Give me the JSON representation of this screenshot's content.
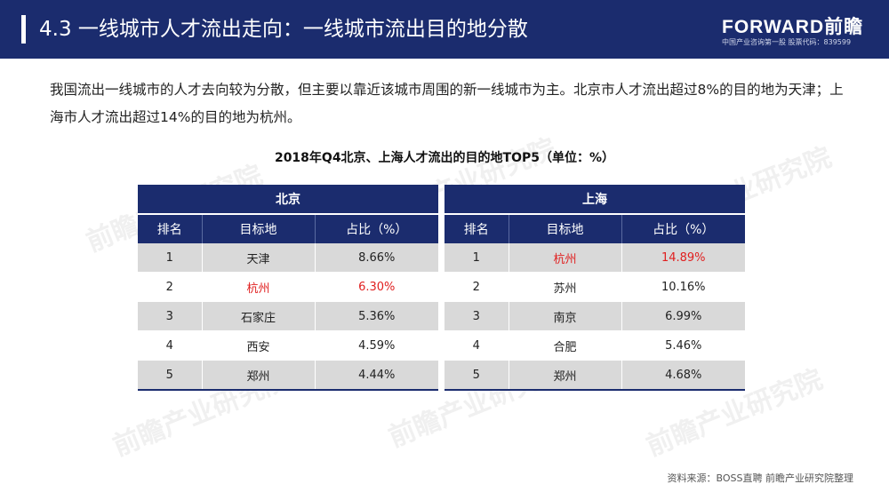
{
  "header": {
    "title": "4.3 一线城市人才流出走向：一线城市流出目的地分散",
    "logo_main": "FORWARD前瞻",
    "logo_sub": "中国产业咨询第一股  股票代码：839599"
  },
  "intro": "我国流出一线城市的人才去向较为分散，但主要以靠近该城市周围的新一线城市为主。北京市人才流出超过8%的目的地为天津；上海市人才流出超过14%的目的地为杭州。",
  "table_title": "2018年Q4北京、上海人才流出的目的地TOP5（单位：%）",
  "columns": [
    "排名",
    "目标地",
    "占比（%）"
  ],
  "beijing": {
    "name": "北京",
    "rows": [
      {
        "rank": "1",
        "city": "天津",
        "share": "8.66%"
      },
      {
        "rank": "2",
        "city": "杭州",
        "share": "6.30%"
      },
      {
        "rank": "3",
        "city": "石家庄",
        "share": "5.36%"
      },
      {
        "rank": "4",
        "city": "西安",
        "share": "4.59%"
      },
      {
        "rank": "5",
        "city": "郑州",
        "share": "4.44%"
      }
    ]
  },
  "shanghai": {
    "name": "上海",
    "rows": [
      {
        "rank": "1",
        "city": "杭州",
        "share": "14.89%"
      },
      {
        "rank": "2",
        "city": "苏州",
        "share": "10.16%"
      },
      {
        "rank": "3",
        "city": "南京",
        "share": "6.99%"
      },
      {
        "rank": "4",
        "city": "合肥",
        "share": "5.46%"
      },
      {
        "rank": "5",
        "city": "郑州",
        "share": "4.68%"
      }
    ]
  },
  "highlight_color": "#e01f1f",
  "accent_color": "#1b2c6e",
  "watermark": "前瞻产业研究院",
  "source": "资料来源：BOSS直聘 前瞻产业研究院整理"
}
